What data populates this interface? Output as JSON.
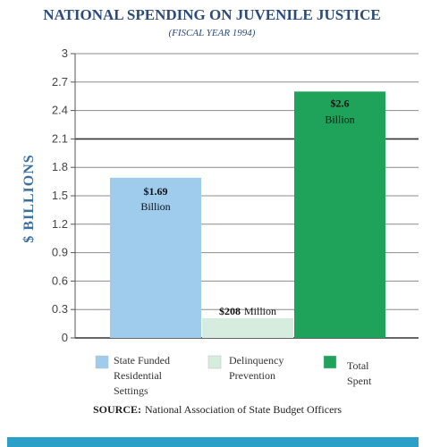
{
  "chart_data": {
    "type": "bar",
    "title": "NATIONAL SPENDING ON JUVENILE JUSTICE",
    "subtitle": "(FISCAL YEAR 1994)",
    "ylabel": "$ BILLIONS",
    "xlabel": "",
    "ylim": [
      0,
      3
    ],
    "yticks": [
      "0",
      "0.3",
      "0.6",
      "0.9",
      "1.2",
      "1.5",
      "1.8",
      "2.1",
      "2.4",
      "2.7",
      "3"
    ],
    "grid": true,
    "categories": [
      "State Funded Residential Settings",
      "Delinquency Prevention",
      "Total Spent"
    ],
    "values": [
      1.69,
      0.208,
      2.6
    ],
    "data_labels": [
      {
        "strong": "$1.69",
        "rest": "Billion"
      },
      {
        "strong": "$208",
        "rest": "Million"
      },
      {
        "strong": "$2.6",
        "rest": "Billion"
      }
    ],
    "colors": [
      "#9fcbec",
      "#d6ecde",
      "#1fa35a"
    ],
    "legend": {
      "placement": "bottom",
      "items": [
        {
          "lines": [
            "State Funded",
            "Residential",
            "Settings"
          ]
        },
        {
          "lines": [
            "Delinquency",
            "Prevention"
          ]
        },
        {
          "lines": [
            "Total",
            "Spent"
          ]
        }
      ]
    },
    "source": {
      "label": "SOURCE:",
      "text": "National Association of State Budget Officers"
    }
  },
  "colors": {
    "title": "#2c4a7a",
    "axis_label": "#3a6fa0",
    "grid": "#8c8c8c",
    "grid_major": "#333333",
    "bottom_bar": "#2aa0c8"
  }
}
